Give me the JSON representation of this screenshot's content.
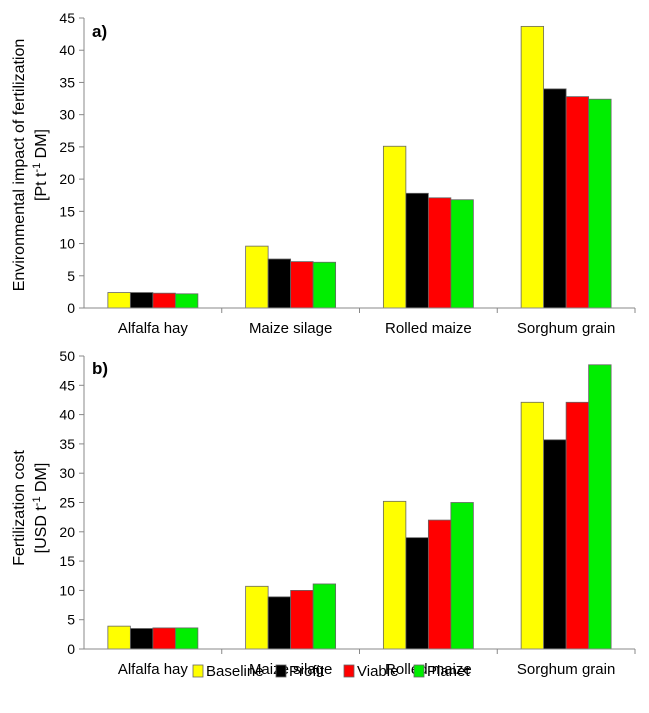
{
  "chart_data": [
    {
      "type": "bar",
      "panel_label": "a)",
      "ylabel_line1": "Environmental impact of fertilization",
      "ylabel_line2_pre": "[Pt  t",
      "ylabel_line2_sup": "-1",
      "ylabel_line2_post": " DM]",
      "ylim": [
        0,
        45
      ],
      "yticks": [
        0,
        5,
        10,
        15,
        20,
        25,
        30,
        35,
        40,
        45
      ],
      "categories": [
        "Alfalfa hay",
        "Maize silage",
        "Rolled maize",
        "Sorghum grain"
      ],
      "series": [
        {
          "name": "Baseline",
          "color": "#ffff00",
          "values": [
            2.4,
            9.6,
            25.1,
            43.7
          ]
        },
        {
          "name": "Profit",
          "color": "#000000",
          "values": [
            2.4,
            7.6,
            17.8,
            34.0
          ]
        },
        {
          "name": "Viable",
          "color": "#ff0000",
          "values": [
            2.3,
            7.2,
            17.1,
            32.8
          ]
        },
        {
          "name": "Planet",
          "color": "#00ee00",
          "values": [
            2.2,
            7.1,
            16.8,
            32.4
          ]
        }
      ],
      "grid": false
    },
    {
      "type": "bar",
      "panel_label": "b)",
      "ylabel_line1": "Fertilization cost",
      "ylabel_line2_pre": "[USD t",
      "ylabel_line2_sup": "-1",
      "ylabel_line2_post": " DM]",
      "ylim": [
        0,
        50
      ],
      "yticks": [
        0,
        5,
        10,
        15,
        20,
        25,
        30,
        35,
        40,
        45,
        50
      ],
      "categories": [
        "Alfalfa hay",
        "Maize silage",
        "Rolled maize",
        "Sorghum grain"
      ],
      "series": [
        {
          "name": "Baseline",
          "color": "#ffff00",
          "values": [
            3.9,
            10.7,
            25.2,
            42.1
          ]
        },
        {
          "name": "Profit",
          "color": "#000000",
          "values": [
            3.5,
            8.9,
            19.0,
            35.7
          ]
        },
        {
          "name": "Viable",
          "color": "#ff0000",
          "values": [
            3.6,
            10.0,
            22.0,
            42.1
          ]
        },
        {
          "name": "Planet",
          "color": "#00ee00",
          "values": [
            3.6,
            11.1,
            25.0,
            48.5
          ]
        }
      ],
      "grid": false
    }
  ],
  "legend": {
    "placement": "bottom",
    "items": [
      {
        "label": "Baseline",
        "color": "#ffff00"
      },
      {
        "label": "Profit",
        "color": "#000000"
      },
      {
        "label": "Viable",
        "color": "#ff0000"
      },
      {
        "label": "Planet",
        "color": "#00ee00"
      }
    ]
  }
}
